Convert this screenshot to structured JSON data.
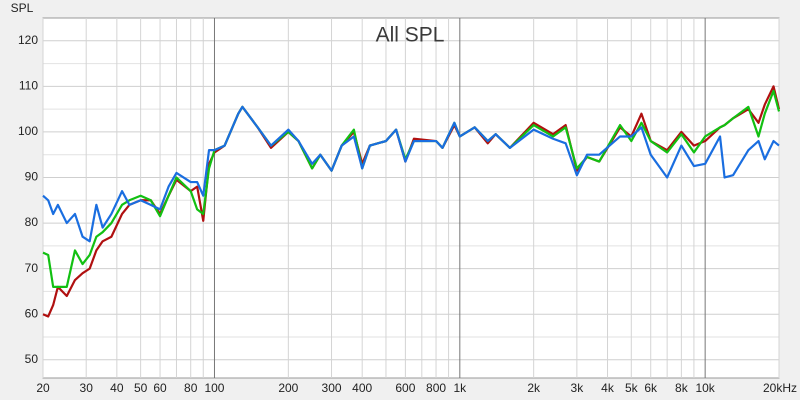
{
  "chart_data": {
    "type": "line",
    "title": "All SPL",
    "y_label": "SPL",
    "xscale": "log",
    "grid": true,
    "xlim": [
      20,
      20000
    ],
    "ylim": [
      46,
      125
    ],
    "yticks": [
      50,
      60,
      70,
      80,
      90,
      100,
      110,
      120
    ],
    "minor_yticks": [
      55,
      65,
      75,
      85,
      95,
      105,
      115
    ],
    "xticks": [
      20,
      30,
      40,
      50,
      60,
      80,
      100,
      200,
      300,
      400,
      600,
      800,
      {
        "value": 1000,
        "label": "1k"
      },
      {
        "value": 2000,
        "label": "2k"
      },
      {
        "value": 3000,
        "label": "3k"
      },
      {
        "value": 4000,
        "label": "4k"
      },
      {
        "value": 5000,
        "label": "5k"
      },
      {
        "value": 6000,
        "label": "6k"
      },
      {
        "value": 8000,
        "label": "8k"
      },
      {
        "value": 10000,
        "label": "10k"
      },
      {
        "value": 20000,
        "label": "20kHz"
      }
    ],
    "minor_xticks": [
      70,
      90,
      500,
      700,
      900,
      7000,
      9000
    ],
    "x": [
      20,
      21,
      22,
      23,
      25,
      27,
      29,
      31,
      33,
      35,
      38,
      42,
      45,
      50,
      55,
      60,
      65,
      70,
      80,
      85,
      90,
      95,
      100,
      110,
      125,
      130,
      150,
      170,
      200,
      220,
      250,
      270,
      300,
      330,
      370,
      400,
      430,
      500,
      550,
      600,
      650,
      800,
      850,
      950,
      1000,
      1150,
      1300,
      1400,
      1600,
      2000,
      2400,
      2700,
      3000,
      3300,
      3700,
      4500,
      5000,
      5500,
      6000,
      7000,
      8000,
      9000,
      10000,
      11500,
      12000,
      13000,
      15000,
      16500,
      17500,
      19000,
      20000
    ],
    "series": [
      {
        "name": "Red",
        "color": "#b01010",
        "values": [
          60,
          59.5,
          62,
          66,
          64,
          67.5,
          69,
          70,
          74,
          76,
          77,
          82,
          84,
          85,
          85,
          82,
          86,
          89.5,
          87,
          88,
          80.5,
          93,
          95.5,
          97,
          104,
          105.5,
          101,
          96.5,
          100,
          98,
          92,
          95,
          91.5,
          97,
          100,
          93,
          97,
          98,
          100.5,
          93.5,
          98.5,
          98,
          96.5,
          101.5,
          99,
          101,
          97.5,
          99.5,
          96.5,
          102,
          99.5,
          101.5,
          91.5,
          94.5,
          93.5,
          101,
          99,
          104,
          98,
          96,
          100,
          97,
          98,
          101,
          101.5,
          103,
          105,
          102,
          106,
          110,
          105
        ]
      },
      {
        "name": "Green",
        "color": "#12c012",
        "values": [
          73.5,
          73,
          66,
          66,
          66,
          74,
          71,
          73,
          77,
          78,
          80,
          84,
          85,
          86,
          85,
          81.5,
          86,
          90,
          87,
          83,
          82,
          92,
          96,
          97,
          104,
          105.5,
          101,
          97,
          100,
          98,
          92,
          95,
          91.5,
          97,
          100.5,
          92,
          97,
          98,
          100.5,
          94,
          98,
          98,
          96.5,
          102,
          99,
          101,
          98,
          99.5,
          96.5,
          101.5,
          99,
          101,
          92,
          94.5,
          93.5,
          101.5,
          98,
          102,
          98,
          95.5,
          99.5,
          95.5,
          99,
          101,
          101.5,
          103,
          105.5,
          99,
          104,
          109,
          104.5
        ]
      },
      {
        "name": "Blue",
        "color": "#1a6ee0",
        "values": [
          86,
          85,
          82,
          84,
          80,
          82,
          77,
          76,
          84,
          79,
          82,
          87,
          84,
          85,
          84,
          83,
          88,
          91,
          89,
          89,
          86,
          96,
          96,
          97,
          104,
          105.5,
          101,
          97,
          100.5,
          98,
          93,
          95,
          91.5,
          97,
          99,
          92,
          97,
          98,
          100.5,
          93.5,
          98,
          98,
          96.5,
          102,
          99,
          101,
          98,
          99.5,
          96.5,
          100.5,
          98.5,
          97.5,
          90.5,
          95,
          95,
          99,
          99,
          101,
          95,
          90,
          97,
          92.5,
          93,
          99,
          90,
          90.5,
          96,
          98,
          94,
          98,
          97
        ]
      }
    ]
  }
}
